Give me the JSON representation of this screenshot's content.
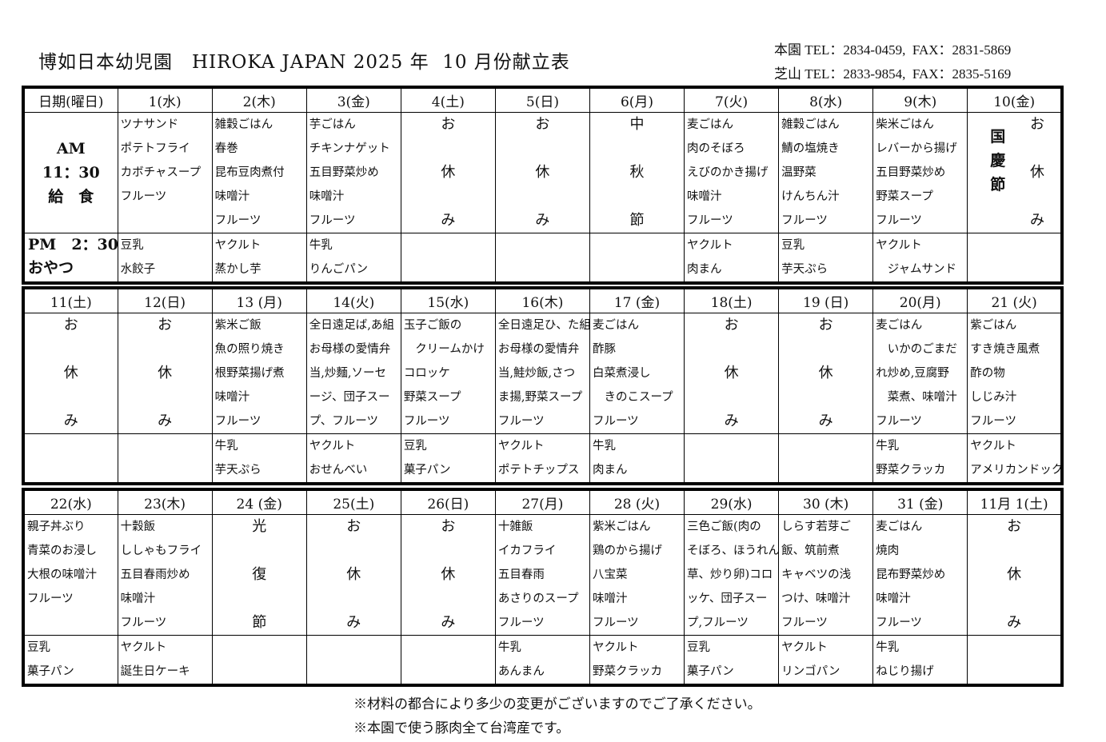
{
  "header": {
    "title": "博如日本幼児園　HIROKA JAPAN 2025 年  10 月份献立表",
    "contacts": [
      "本園 TEL：2834-0459,  FAX：2831-5869",
      "芝山 TEL：2833-9854,  FAX：2835-5169"
    ]
  },
  "labels": {
    "date_header": "日期(曜日)",
    "am": [
      "AM",
      "11：30",
      "給　食"
    ],
    "pm": [
      "PM　2：30",
      "おやつ"
    ]
  },
  "weeks": [
    {
      "days": [
        {
          "date": "1(水)",
          "lunch": [
            "ツナサンド",
            "ポテトフライ",
            "カボチャスープ",
            "フルーツ"
          ],
          "snack": [
            "豆乳",
            "水餃子"
          ]
        },
        {
          "date": "2(木)",
          "lunch": [
            "雑穀ごはん",
            "春巻",
            "昆布豆肉煮付",
            "味噌汁",
            "フルーツ"
          ],
          "snack": [
            "ヤクルト",
            "蒸かし芋"
          ]
        },
        {
          "date": "3(金)",
          "lunch": [
            "芋ごはん",
            "チキンナゲット",
            "五目野菜炒め",
            "味噌汁",
            "フルーツ"
          ],
          "snack": [
            "牛乳",
            "りんごパン"
          ]
        },
        {
          "date": "4(土)",
          "holiday": [
            "お",
            "休",
            "み"
          ]
        },
        {
          "date": "5(日)",
          "holiday": [
            "お",
            "休",
            "み"
          ]
        },
        {
          "date": "6(月)",
          "holiday": [
            "中",
            "秋",
            "節"
          ]
        },
        {
          "date": "7(火)",
          "lunch": [
            "麦ごはん",
            "肉のそぼろ",
            "えびのかき揚げ",
            "味噌汁",
            "フルーツ"
          ],
          "snack": [
            "ヤクルト",
            "肉まん"
          ]
        },
        {
          "date": "8(水)",
          "lunch": [
            "雑穀ごはん",
            "鯖の塩焼き",
            "温野菜",
            "けんちん汁",
            "フルーツ"
          ],
          "snack": [
            "豆乳",
            "芋天ぷら"
          ]
        },
        {
          "date": "9(木)",
          "lunch": [
            "柴米ごはん",
            "レバーから揚げ",
            "五目野菜炒め",
            "野菜スープ",
            "フルーツ"
          ],
          "snack": [
            "ヤクルト",
            "　ジャムサンド"
          ]
        },
        {
          "date": "10(金)",
          "holiday": [
            "お",
            "休",
            "み"
          ],
          "holiday_label": [
            "国",
            "慶",
            "節"
          ]
        }
      ]
    },
    {
      "days": [
        {
          "date": "11(土)",
          "holiday": [
            "お",
            "休",
            "み"
          ]
        },
        {
          "date": "12(日)",
          "holiday": [
            "お",
            "休",
            "み"
          ]
        },
        {
          "date": "13 (月)",
          "lunch": [
            "紫米ご飯",
            "魚の照り焼き",
            "根野菜揚げ煮",
            "味噌汁",
            "フルーツ"
          ],
          "snack": [
            "牛乳",
            "芋天ぷら"
          ]
        },
        {
          "date": "14(火)",
          "lunch": [
            "全日遠足ば,あ組",
            "お母様の愛情弁",
            "当,炒麵,ソーセ",
            "ージ、団子スー",
            "プ、フルーツ"
          ],
          "snack": [
            "ヤクルト",
            "おせんべい"
          ]
        },
        {
          "date": "15(水)",
          "lunch": [
            "玉子ご飯の",
            "　クリームかけ",
            "コロッケ",
            "野菜スープ",
            "フルーツ"
          ],
          "snack": [
            "豆乳",
            "菓子パン"
          ]
        },
        {
          "date": "16(木)",
          "lunch": [
            "全日遠足ひ、た組",
            "お母様の愛情弁",
            "当,鮭炒飯,さつ",
            "ま揚,野菜スープ",
            "フルーツ"
          ],
          "snack": [
            "ヤクルト",
            "ポテトチップス"
          ]
        },
        {
          "date": "17 (金)",
          "lunch": [
            "麦ごはん",
            "酢豚",
            "白菜煮浸し",
            "　きのこスープ",
            "フルーツ"
          ],
          "snack": [
            "牛乳",
            "肉まん"
          ]
        },
        {
          "date": "18(土)",
          "holiday": [
            "お",
            "休",
            "み"
          ]
        },
        {
          "date": "19 (日)",
          "holiday": [
            "お",
            "休",
            "み"
          ]
        },
        {
          "date": "20(月)",
          "lunch": [
            "麦ごはん",
            "　いかのごまだ",
            "れ炒め,豆腐野",
            "　菜煮、味噌汁",
            "フルーツ"
          ],
          "snack": [
            "牛乳",
            "野菜クラッカ"
          ]
        },
        {
          "date": "21 (火)",
          "lunch": [
            "紫ごはん",
            "すき焼き風煮",
            "酢の物",
            "しじみ汁",
            "フルーツ"
          ],
          "snack": [
            "ヤクルト",
            "アメリカンドック"
          ]
        }
      ]
    },
    {
      "days": [
        {
          "date": "22(水)",
          "lunch": [
            "親子丼ぶり",
            "青菜のお浸し",
            "大根の味噌汁",
            "フルーツ"
          ],
          "snack": [
            "豆乳",
            "菓子パン"
          ]
        },
        {
          "date": "23(木)",
          "lunch": [
            "十穀飯",
            "ししゃもフライ",
            "五目春雨炒め",
            "味噌汁",
            "フルーツ"
          ],
          "snack": [
            "ヤクルト",
            "誕生日ケーキ"
          ]
        },
        {
          "date": "24 (金)",
          "holiday": [
            "光",
            "復",
            "節"
          ]
        },
        {
          "date": "25(土)",
          "holiday": [
            "お",
            "休",
            "み"
          ]
        },
        {
          "date": "26(日)",
          "holiday": [
            "お",
            "休",
            "み"
          ]
        },
        {
          "date": "27(月)",
          "lunch": [
            "十雑飯",
            "イカフライ",
            "五目春雨",
            "あさりのスープ",
            "フルーツ"
          ],
          "snack": [
            "牛乳",
            "あんまん"
          ]
        },
        {
          "date": "28 (火)",
          "lunch": [
            "紫米ごはん",
            "鶏のから揚げ",
            "八宝菜",
            "味噌汁",
            "フルーツ"
          ],
          "snack": [
            "ヤクルト",
            "野菜クラッカ"
          ]
        },
        {
          "date": "29(水)",
          "lunch": [
            "三色ご飯(肉の",
            "そぼろ、ほうれん",
            "草、炒り卵)コロ",
            "ッケ、団子スー",
            "プ,フルーツ"
          ],
          "snack": [
            "豆乳",
            "菓子パン"
          ]
        },
        {
          "date": "30 (木)",
          "lunch": [
            "しらす若芽ご",
            "飯、筑前煮",
            "キャベツの浅",
            "つけ、味噌汁",
            "フルーツ"
          ],
          "snack": [
            "ヤクルト",
            "リンゴパン"
          ]
        },
        {
          "date": "31 (金)",
          "lunch": [
            "麦ごはん",
            "焼肉",
            "昆布野菜炒め",
            "味噌汁",
            "フルーツ"
          ],
          "snack": [
            "牛乳",
            "ねじり揚げ"
          ]
        },
        {
          "date": "11月 1(土)",
          "holiday": [
            "お",
            "休",
            "み"
          ]
        }
      ]
    }
  ],
  "notes": [
    "※材料の都合により多少の変更がございますのでご了承ください。",
    "※本園で使う豚肉全て台湾産です。"
  ]
}
